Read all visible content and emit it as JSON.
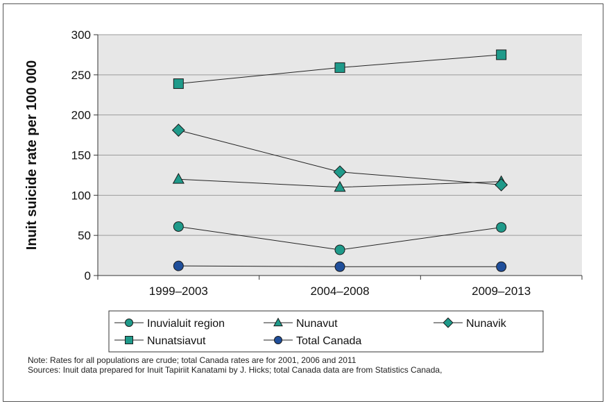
{
  "chart_data": {
    "type": "line",
    "title": "",
    "xlabel": "",
    "ylabel": "Inuit suicide rate per 100 000",
    "categories": [
      "1999–2003",
      "2004–2008",
      "2009–2013"
    ],
    "ylim": [
      0,
      300
    ],
    "yticks": [
      0,
      50,
      100,
      150,
      200,
      250,
      300
    ],
    "grid": true,
    "legend_position": "bottom",
    "series": [
      {
        "name": "Inuvialuit region",
        "values": [
          61,
          32,
          60
        ],
        "marker": "circle",
        "color": "#1f9a8a"
      },
      {
        "name": "Nunavut",
        "values": [
          120,
          110,
          117
        ],
        "marker": "triangle",
        "color": "#1f9a8a"
      },
      {
        "name": "Nunavik",
        "values": [
          181,
          129,
          113
        ],
        "marker": "diamond",
        "color": "#1f9a8a"
      },
      {
        "name": "Nunatsiavut",
        "values": [
          239,
          259,
          275
        ],
        "marker": "square",
        "color": "#1f9a8a"
      },
      {
        "name": "Total Canada",
        "values": [
          12,
          11,
          11
        ],
        "marker": "circle",
        "color": "#1f4e9a"
      }
    ]
  },
  "notes": {
    "line1": "Note: Rates for all populations are crude; total Canada rates are for 2001, 2006 and 2011",
    "line2": "Sources: Inuit data prepared for Inuit Tapiriit Kanatami by J. Hicks; total Canada data are from Statistics Canada,"
  },
  "colors": {
    "plot_background": "#e7e7e7",
    "marker_stroke": "#1a1a1a",
    "line": "#222222"
  }
}
